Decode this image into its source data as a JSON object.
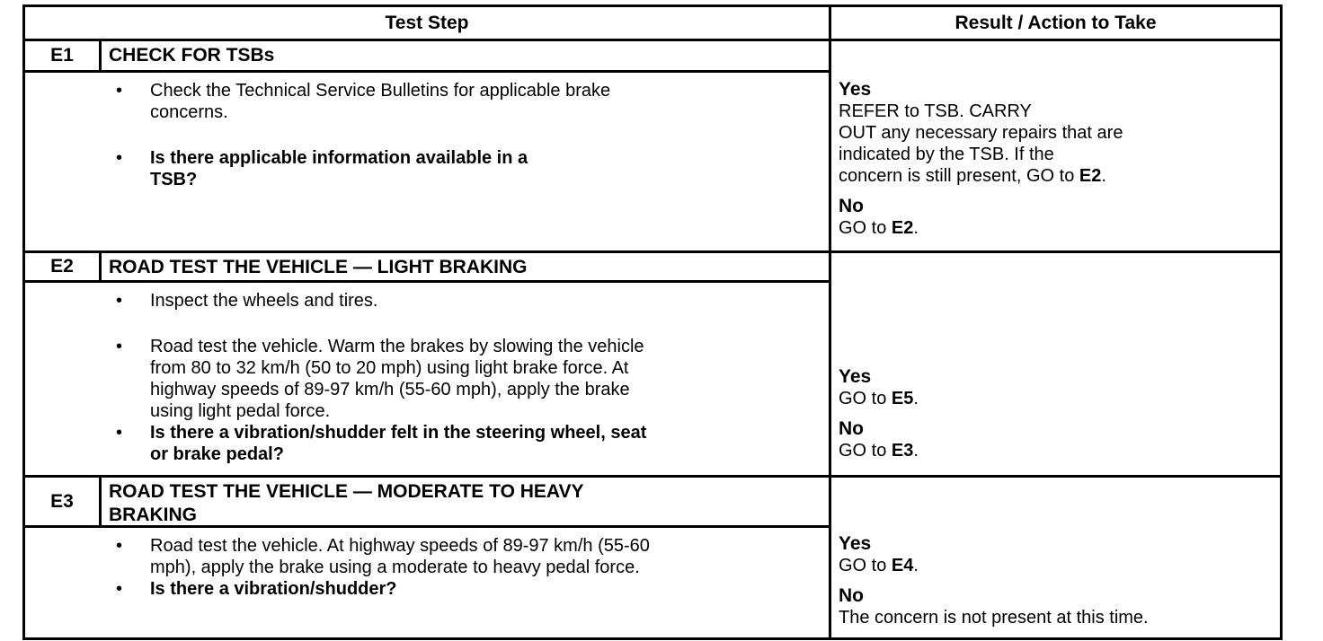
{
  "table": {
    "headers": {
      "test_step": "Test Step",
      "result": "Result / Action to Take"
    },
    "steps": [
      {
        "code": "E1",
        "title": "CHECK FOR TSBs",
        "bullets": [
          {
            "text": "Check the Technical Service Bulletins for applicable brake\nconcerns."
          },
          {
            "text": "**Is there applicable information available in a\nTSB?**"
          }
        ],
        "results": [
          {
            "label": "Yes",
            "action": "REFER to TSB. CARRY\nOUT any necessary repairs that are\nindicated by the TSB. If the\nconcern is still present, GO to **E2**."
          },
          {
            "label": "No",
            "action": "GO to **E2**."
          }
        ]
      },
      {
        "code": "E2",
        "title": "ROAD TEST THE VEHICLE — LIGHT BRAKING",
        "bullets": [
          {
            "text": "Inspect the wheels and tires."
          },
          {
            "text": "Road test the vehicle. Warm the brakes by slowing the vehicle\nfrom 80 to 32 km/h (50 to 20 mph) using light brake force. At\nhighway speeds of 89-97 km/h (55-60 mph), apply the brake\nusing light pedal force."
          },
          {
            "text": "**Is there a vibration/shudder felt in the steering wheel, seat\nor brake pedal?**"
          }
        ],
        "results": [
          {
            "label": "Yes",
            "action": "GO to **E5**."
          },
          {
            "label": "No",
            "action": "GO to **E3**."
          }
        ]
      },
      {
        "code": "E3",
        "title": "ROAD TEST THE VEHICLE — MODERATE TO HEAVY\nBRAKING",
        "bullets": [
          {
            "text": "Road test the vehicle. At highway speeds of 89-97 km/h (55-60\nmph), apply the brake using a moderate to heavy pedal force."
          },
          {
            "text": "**Is there a vibration/shudder?**"
          }
        ],
        "results": [
          {
            "label": "Yes",
            "action": "GO to **E4**."
          },
          {
            "label": "No",
            "action": "The concern is not present at this time."
          }
        ]
      }
    ]
  }
}
